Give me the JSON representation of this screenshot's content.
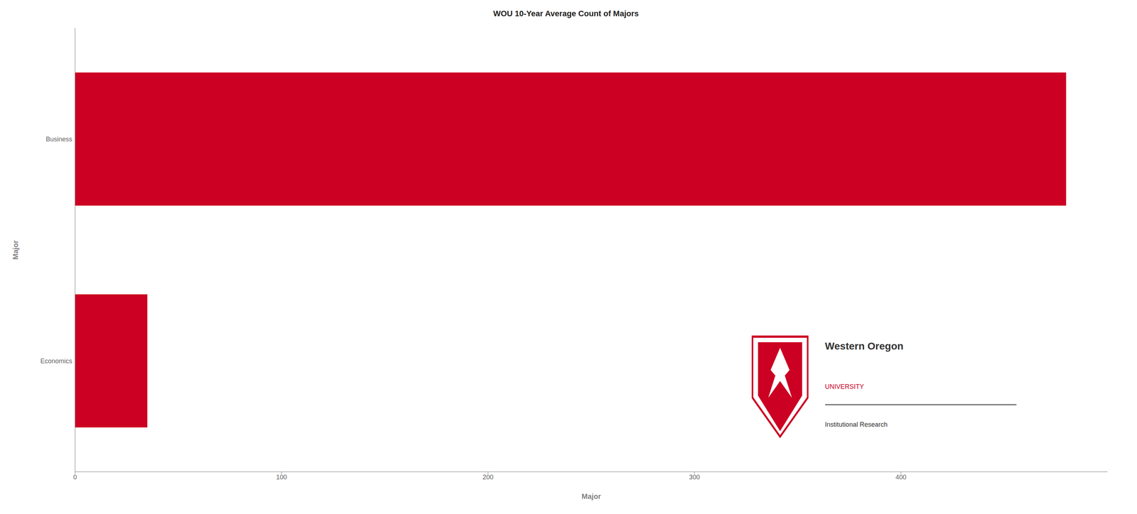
{
  "chart_data": {
    "type": "bar",
    "orientation": "horizontal",
    "title": "WOU 10-Year Average Count of Majors",
    "categories": [
      "Business",
      "Economics"
    ],
    "values": [
      480,
      35
    ],
    "color": "#CC0022",
    "xlabel": "Major",
    "ylabel": "Major",
    "xlim": [
      0,
      500
    ],
    "xticks": [
      0,
      100,
      200,
      300,
      400
    ],
    "grid": false,
    "annotations": [
      "Western Oregon",
      "UNIVERSITY",
      "Institutional Research"
    ]
  }
}
